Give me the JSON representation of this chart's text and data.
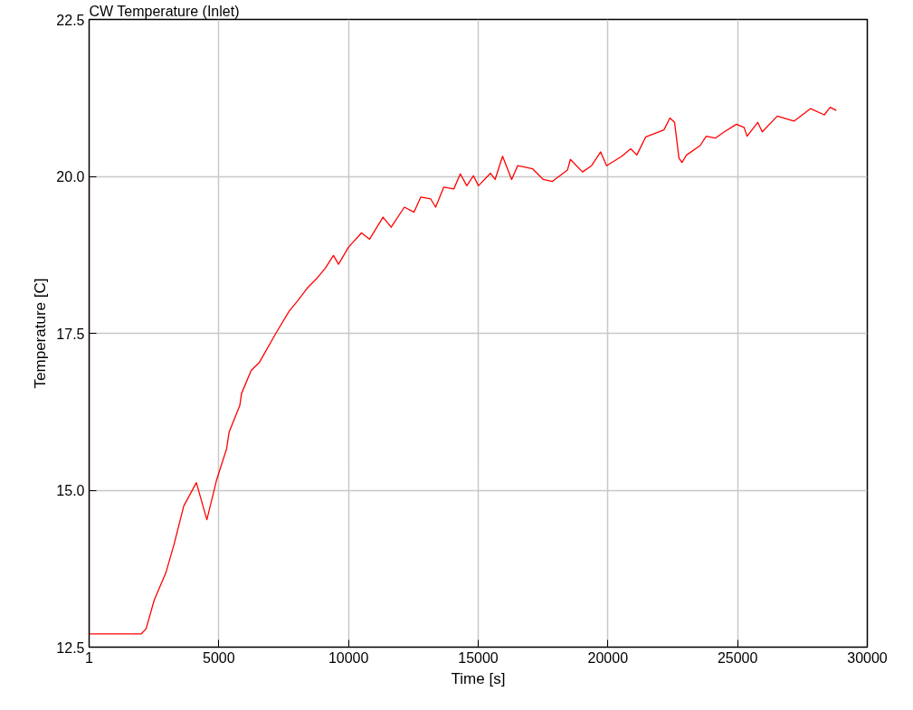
{
  "chart_data": {
    "type": "line",
    "title": "CW Temperature (Inlet)",
    "xlabel": "Time [s]",
    "ylabel": "Temperature [C]",
    "x": [
      1,
      1,
      2005,
      2195,
      2510,
      2955,
      3270,
      3650,
      4135,
      4540,
      4920,
      5300,
      5400,
      5810,
      5875,
      6250,
      6570,
      7200,
      7710,
      8025,
      8410,
      8790,
      9110,
      9420,
      9615,
      10000,
      10500,
      10815,
      11330,
      11645,
      12155,
      12525,
      12785,
      13170,
      13360,
      13675,
      14060,
      14310,
      14560,
      14815,
      15010,
      15475,
      15650,
      15940,
      16290,
      16520,
      17100,
      17510,
      17860,
      18440,
      18555,
      19020,
      19370,
      19720,
      19950,
      20535,
      20880,
      21115,
      21460,
      22160,
      22390,
      22570,
      22740,
      22855,
      23030,
      23555,
      23790,
      24140,
      24490,
      24955,
      25250,
      25365,
      25775,
      25950,
      26530,
      27175,
      27815,
      28340,
      28570,
      28805
    ],
    "series": [
      {
        "color": "#ff0000",
        "values": [
          20.0,
          12.71,
          12.71,
          12.79,
          13.25,
          13.68,
          14.13,
          14.75,
          15.12,
          14.53,
          15.17,
          15.66,
          15.93,
          16.35,
          16.54,
          16.91,
          17.04,
          17.5,
          17.85,
          18.01,
          18.22,
          18.38,
          18.54,
          18.74,
          18.6,
          18.87,
          19.1,
          19.0,
          19.35,
          19.19,
          19.51,
          19.43,
          19.67,
          19.64,
          19.51,
          19.83,
          19.8,
          20.04,
          19.85,
          20.01,
          19.85,
          20.05,
          19.95,
          20.32,
          19.95,
          20.17,
          20.12,
          19.95,
          19.92,
          20.1,
          20.27,
          20.07,
          20.17,
          20.39,
          20.17,
          20.32,
          20.44,
          20.34,
          20.63,
          20.74,
          20.93,
          20.86,
          20.29,
          20.22,
          20.34,
          20.49,
          20.64,
          20.61,
          20.71,
          20.83,
          20.78,
          20.64,
          20.86,
          20.71,
          20.96,
          20.88,
          21.08,
          20.98,
          21.1,
          21.05
        ]
      }
    ],
    "xlim": [
      1,
      30000
    ],
    "xticks": [
      1,
      5000,
      10000,
      15000,
      20000,
      25000,
      30000
    ],
    "ylim": [
      12.5,
      22.5
    ],
    "yticks": [
      {
        "value": 12.5,
        "label": "12.5"
      },
      {
        "value": 15,
        "label": "15.0"
      },
      {
        "value": 17.5,
        "label": "17.5"
      },
      {
        "value": 20,
        "label": "20.0"
      },
      {
        "value": 22.5,
        "label": "22.5"
      }
    ],
    "grid": true,
    "marker": "none",
    "line_style": "solid"
  }
}
